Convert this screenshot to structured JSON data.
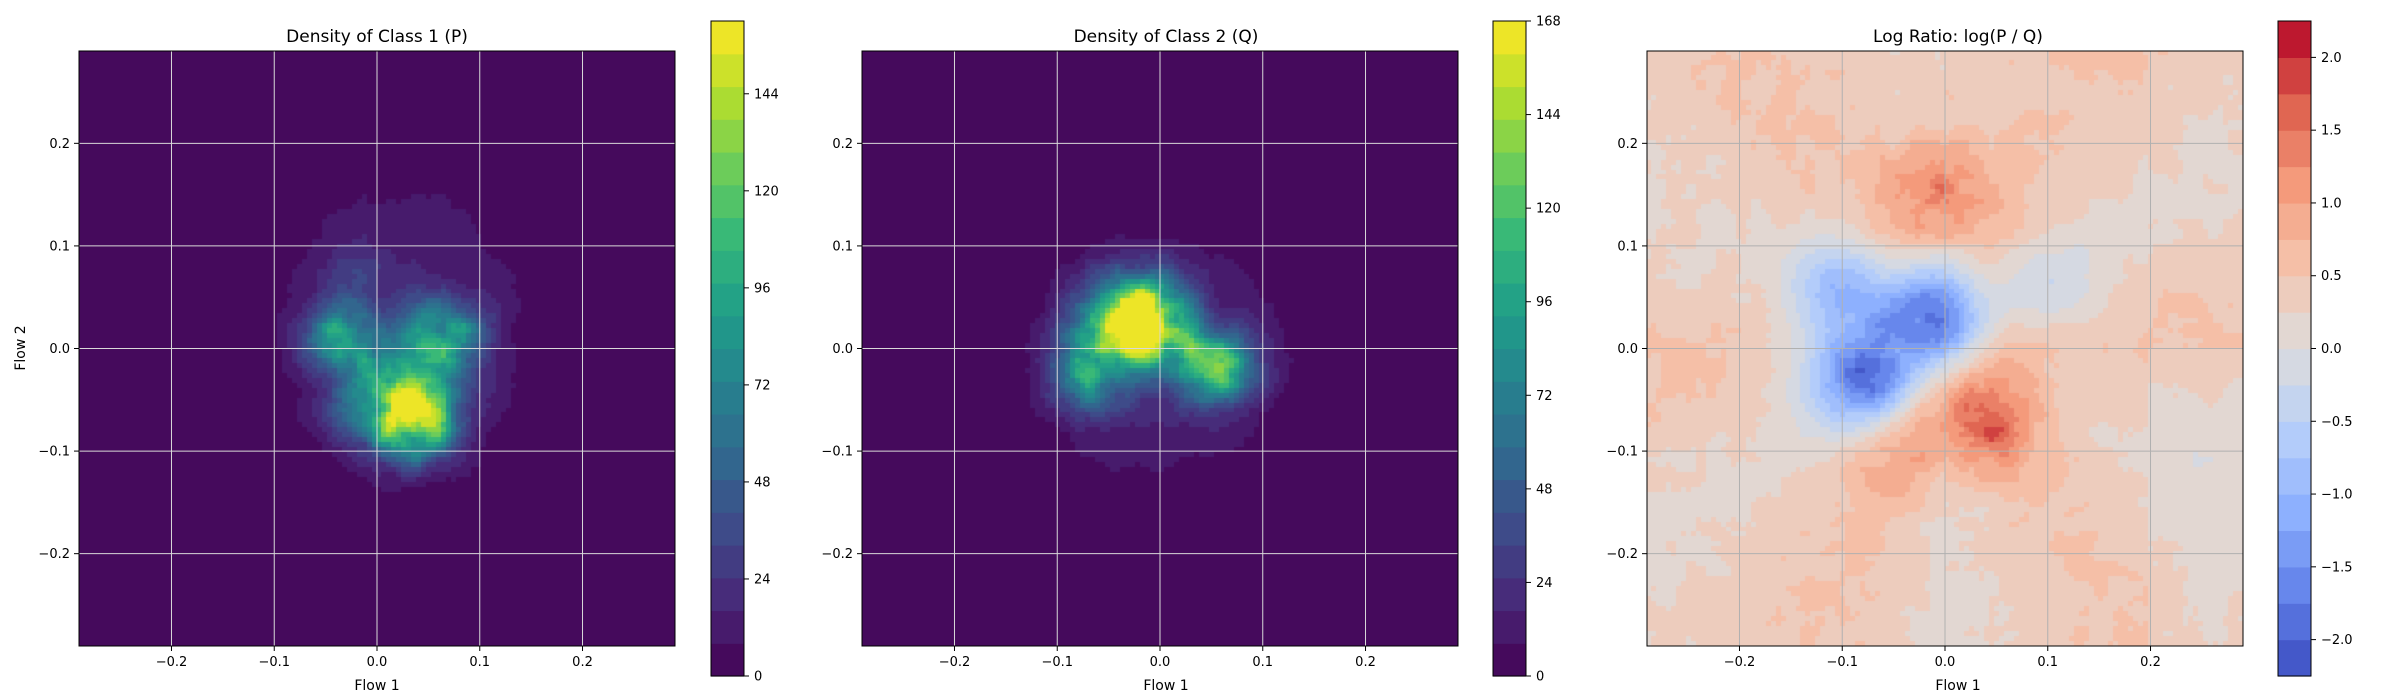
{
  "figure": {
    "panels": [
      {
        "id": "p",
        "title": "Density of Class 1 (P)",
        "xlabel": "Flow 1",
        "ylabel": "Flow 2",
        "colormap": "viridis",
        "colorbar": {
          "min": 0,
          "max": 162,
          "ticks": [
            0,
            24,
            48,
            72,
            96,
            120,
            144
          ],
          "levels": 20
        }
      },
      {
        "id": "q",
        "title": "Density of Class 2 (Q)",
        "xlabel": "Flow 1",
        "ylabel": "",
        "colormap": "viridis",
        "colorbar": {
          "min": 0,
          "max": 168,
          "ticks": [
            0,
            24,
            48,
            72,
            96,
            120,
            144,
            168
          ],
          "levels": 20
        }
      },
      {
        "id": "r",
        "title": "Log Ratio: log(P / Q)",
        "xlabel": "Flow 1",
        "ylabel": "",
        "colormap": "coolwarm",
        "colorbar": {
          "min": -2.25,
          "max": 2.25,
          "ticks": [
            -2.0,
            -1.5,
            -1.0,
            -0.5,
            0.0,
            0.5,
            1.0,
            1.5,
            2.0
          ],
          "tick_labels": [
            "−2.0",
            "−1.5",
            "−1.0",
            "−0.5",
            "0.0",
            "0.5",
            "1.0",
            "1.5",
            "2.0"
          ],
          "levels": 18
        }
      }
    ]
  },
  "chart_data": [
    {
      "type": "heatmap",
      "title": "Density of Class 1 (P)",
      "xlabel": "Flow 1",
      "ylabel": "Flow 2",
      "xlim": [
        -0.29,
        0.29
      ],
      "ylim": [
        -0.29,
        0.29
      ],
      "xticks": [
        -0.2,
        -0.1,
        0.0,
        0.1,
        0.2
      ],
      "yticks": [
        -0.2,
        -0.1,
        0.0,
        0.1,
        0.2
      ],
      "tick_labels": [
        "−0.2",
        "−0.1",
        "0.0",
        "0.1",
        "0.2"
      ],
      "grid": true,
      "background_value": 0,
      "peaks": [
        {
          "x": 0.035,
          "y": -0.065,
          "value": 155
        },
        {
          "x": 0.065,
          "y": 0.01,
          "value": 95
        },
        {
          "x": -0.035,
          "y": 0.01,
          "value": 70
        },
        {
          "x": 0.0,
          "y": -0.02,
          "value": 55
        },
        {
          "x": -0.02,
          "y": -0.06,
          "value": 45
        },
        {
          "x": -0.02,
          "y": 0.08,
          "value": 15
        }
      ],
      "support_extent": {
        "x": [
          -0.1,
          0.15
        ],
        "y": [
          -0.14,
          0.17
        ]
      }
    },
    {
      "type": "heatmap",
      "title": "Density of Class 2 (Q)",
      "xlabel": "Flow 1",
      "ylabel": "",
      "xlim": [
        -0.29,
        0.29
      ],
      "ylim": [
        -0.29,
        0.29
      ],
      "xticks": [
        -0.2,
        -0.1,
        0.0,
        0.1,
        0.2
      ],
      "yticks": [
        -0.2,
        -0.1,
        0.0,
        0.1,
        0.2
      ],
      "tick_labels": [
        "−0.2",
        "−0.1",
        "0.0",
        "0.1",
        "0.2"
      ],
      "grid": true,
      "background_value": 0,
      "peaks": [
        {
          "x": -0.015,
          "y": 0.03,
          "value": 165
        },
        {
          "x": -0.07,
          "y": -0.02,
          "value": 95
        },
        {
          "x": 0.06,
          "y": -0.02,
          "value": 90
        },
        {
          "x": -0.05,
          "y": 0.03,
          "value": 60
        },
        {
          "x": 0.01,
          "y": 0.0,
          "value": 50
        }
      ],
      "support_extent": {
        "x": [
          -0.13,
          0.13
        ],
        "y": [
          -0.14,
          0.12
        ]
      }
    },
    {
      "type": "heatmap",
      "title": "Log Ratio: log(P / Q)",
      "xlabel": "Flow 1",
      "ylabel": "",
      "xlim": [
        -0.29,
        0.29
      ],
      "ylim": [
        -0.29,
        0.29
      ],
      "xticks": [
        -0.2,
        -0.1,
        0.0,
        0.1,
        0.2
      ],
      "yticks": [
        -0.2,
        -0.1,
        0.0,
        0.1,
        0.2
      ],
      "tick_labels": [
        "−0.2",
        "−0.1",
        "0.0",
        "0.1",
        "0.2"
      ],
      "grid": true,
      "background_value": 0.35,
      "peaks": [
        {
          "x": -0.01,
          "y": 0.15,
          "value": 1.7
        },
        {
          "x": 0.035,
          "y": -0.065,
          "value": 1.9
        },
        {
          "x": -0.01,
          "y": 0.03,
          "value": -2.0
        },
        {
          "x": -0.08,
          "y": -0.03,
          "value": -1.9
        },
        {
          "x": -0.1,
          "y": 0.06,
          "value": -0.9
        },
        {
          "x": 0.07,
          "y": 0.02,
          "value": 0.7
        },
        {
          "x": 0.1,
          "y": -0.07,
          "value": 0.5
        },
        {
          "x": 0.0,
          "y": 0.24,
          "value": 0.6
        },
        {
          "x": 0.1,
          "y": 0.05,
          "value": -0.3
        },
        {
          "x": -0.14,
          "y": -0.02,
          "value": 0.1
        },
        {
          "x": -0.05,
          "y": -0.1,
          "value": 0.9
        }
      ]
    }
  ]
}
